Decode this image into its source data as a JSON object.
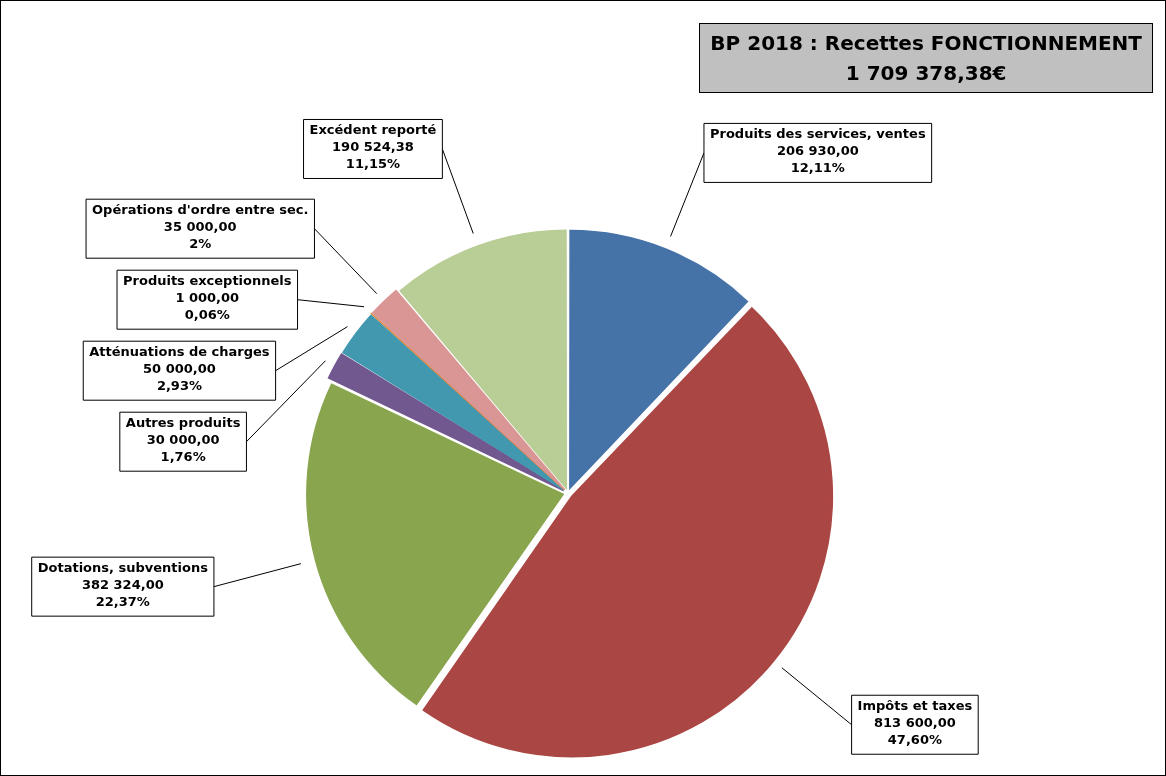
{
  "chart_data": {
    "type": "pie",
    "title": "BP 2018 : Recettes FONCTIONNEMENT",
    "subtitle": "1 709 378,38€",
    "categories": [
      "Produits des services, ventes",
      "Impôts et taxes",
      "Dotations, subventions",
      "Autres produits",
      "Atténuations de charges",
      "Produits exceptionnels",
      "Opérations d'ordre entre sec.",
      "Excédent reporté"
    ],
    "values": [
      206930,
      813600,
      382324,
      30000,
      50000,
      1000,
      35000,
      190524.38
    ],
    "colors": [
      "#4572a7",
      "#aa4643",
      "#89a54e",
      "#71588f",
      "#4198af",
      "#db843d",
      "#d99694",
      "#b9cd96"
    ],
    "value_labels": [
      "206 930,00\n12,11%",
      "813 600,00\n47,60%",
      "382 324,00\n22,37%",
      "30 000,00\n1,76%",
      "50 000,00\n2,93%",
      "1 000,00\n0,06%",
      "35 000,00\n2%",
      "190 524,38\n11,15%"
    ],
    "legend": false
  }
}
